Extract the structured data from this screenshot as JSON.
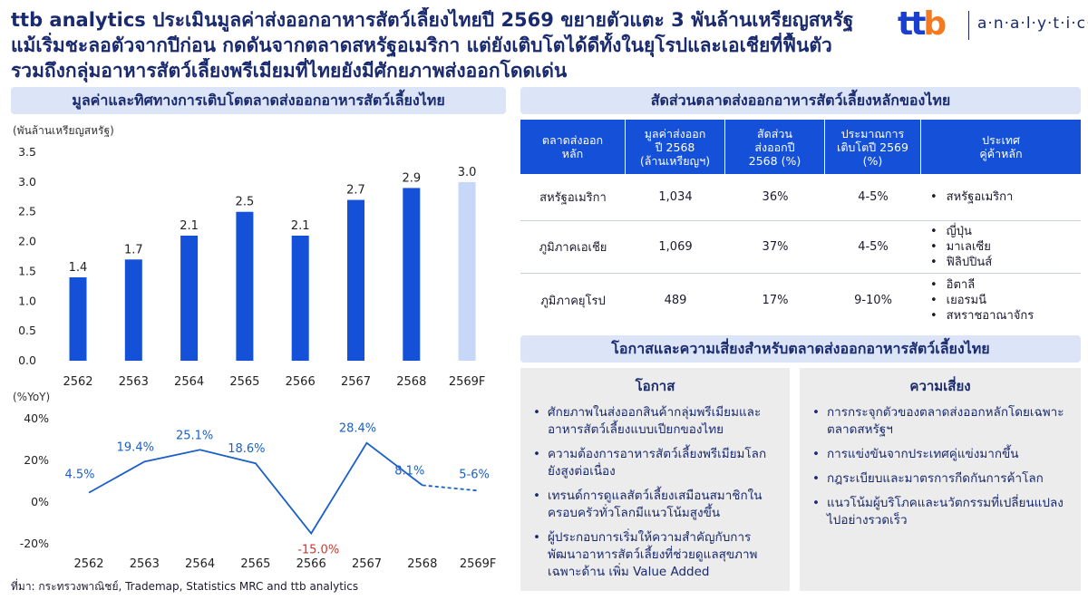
{
  "headline": {
    "line1": "ttb analytics ประเมินมูลค่าส่งออกอาหารสัตว์เลี้ยงไทยปี 2569 ขยายตัวแตะ 3 พันล้านเหรียญสหรัฐ",
    "line2": "แม้เริ่มชะลอตัวจากปีก่อน กดดันจากตลาดสหรัฐอเมริกา แต่ยังเติบโตได้ดีทั้งในยุโรปและเอเชียที่ฟื้นตัว",
    "line3": "รวมถึงกลุ่มอาหารสัตว์เลี้ยงพรีเมียมที่ไทยยังมีศักยภาพส่งออกโดดเด่น"
  },
  "logo": {
    "mark_t1": "tt",
    "mark_b": "b",
    "text": "a·n·a·l·y·t·i·c·s"
  },
  "left_section": {
    "title": "มูลค่าและทิศทางการเติบโตตลาดส่งออกอาหารสัตว์เลี้ยงไทย"
  },
  "chart_data": [
    {
      "type": "bar",
      "ylabel": "(พันล้านเหรียญสหรัฐ)",
      "categories": [
        "2562",
        "2563",
        "2564",
        "2565",
        "2566",
        "2567",
        "2568",
        "2569F"
      ],
      "values": [
        1.4,
        1.7,
        2.1,
        2.5,
        2.1,
        2.7,
        2.9,
        3.0
      ],
      "value_labels": [
        "1.4",
        "1.7",
        "2.1",
        "2.5",
        "2.1",
        "2.7",
        "2.9",
        "3.0"
      ],
      "yticks": [
        "3.5",
        "3.0",
        "2.5",
        "2.0",
        "1.5",
        "1.0",
        "0.5",
        "0.0"
      ],
      "ylim": [
        0,
        3.5
      ],
      "colors": {
        "actual": "#1550d8",
        "forecast": "#c7d7f8"
      }
    },
    {
      "type": "line",
      "ylabel": "(%YoY)",
      "categories": [
        "2562",
        "2563",
        "2564",
        "2565",
        "2566",
        "2567",
        "2568",
        "2569F"
      ],
      "values": [
        4.5,
        19.4,
        25.1,
        18.6,
        -15.0,
        28.4,
        8.1,
        5.5
      ],
      "value_labels": [
        "4.5%",
        "19.4%",
        "25.1%",
        "18.6%",
        "-15.0%",
        "28.4%",
        "8.1%",
        "5-6%"
      ],
      "yticks": [
        "40%",
        "20%",
        "0%",
        "-20%"
      ],
      "ylim": [
        -20,
        40
      ],
      "forecast_dashed_from": "2568",
      "colors": {
        "line": "#1a5fc8",
        "negative_label": "#d0342c"
      }
    }
  ],
  "table_section": {
    "title": "สัดส่วนตลาดส่งออกอาหารสัตว์เลี้ยงหลักของไทย",
    "headers": [
      "ตลาดส่งออก\nหลัก",
      "มูลค่าส่งออก\nปี 2568\n(ล้านเหรียญฯ)",
      "สัดส่วน\nส่งออกปี\n2568 (%)",
      "ประมาณการ\nเติบโตปี 2569\n(%)",
      "ประเทศ\nคู่ค้าหลัก"
    ],
    "rows": [
      {
        "market": "สหรัฐอเมริกา",
        "value": "1,034",
        "share": "36%",
        "growth": "4-5%",
        "partners": [
          "สหรัฐอเมริกา"
        ]
      },
      {
        "market": "ภูมิภาคเอเชีย",
        "value": "1,069",
        "share": "37%",
        "growth": "4-5%",
        "partners": [
          "ญี่ปุ่น",
          "มาเลเซีย",
          "ฟิลิปปินส์"
        ]
      },
      {
        "market": "ภูมิภาคยุโรป",
        "value": "489",
        "share": "17%",
        "growth": "9-10%",
        "partners": [
          "อิตาลี",
          "เยอรมนี",
          "สหราชอาณาจักร"
        ]
      }
    ]
  },
  "opportunity_section": {
    "title": "โอกาสและความเสี่ยงสำหรับตลาดส่งออกอาหารสัตว์เลี้ยงไทย",
    "opportunities": {
      "heading": "โอกาส",
      "items": [
        "ศักยภาพในส่งออกสินค้ากลุ่มพรีเมียมและอาหารสัตว์เลี้ยงแบบเปียกของไทย",
        "ความต้องการอาหารสัตว์เลี้ยงพรีเมียมโลกยังสูงต่อเนื่อง",
        "เทรนด์การดูแลสัตว์เลี้ยงเสมือนสมาชิกในครอบครัวทั่วโลกมีแนวโน้มสูงขึ้น",
        "ผู้ประกอบการเริ่มให้ความสำคัญกับการพัฒนาอาหารสัตว์เลี้ยงที่ช่วยดูแลสุขภาพเฉพาะด้าน เพิ่ม Value Added"
      ]
    },
    "risks": {
      "heading": "ความเสี่ยง",
      "items": [
        "การกระจุกตัวของตลาดส่งออกหลักโดยเฉพาะตลาดสหรัฐฯ",
        "การแข่งขันจากประเทศคู่แข่งมากขึ้น",
        "กฎระเบียบและมาตรการกีดกันการค้าโลก",
        "แนวโน้มผู้บริโภคและนวัตกรรมที่เปลี่ยนแปลงไปอย่างรวดเร็ว"
      ]
    }
  },
  "source": "ที่มา: กระทรวงพาณิชย์, Trademap, Statistics MRC and ttb analytics"
}
